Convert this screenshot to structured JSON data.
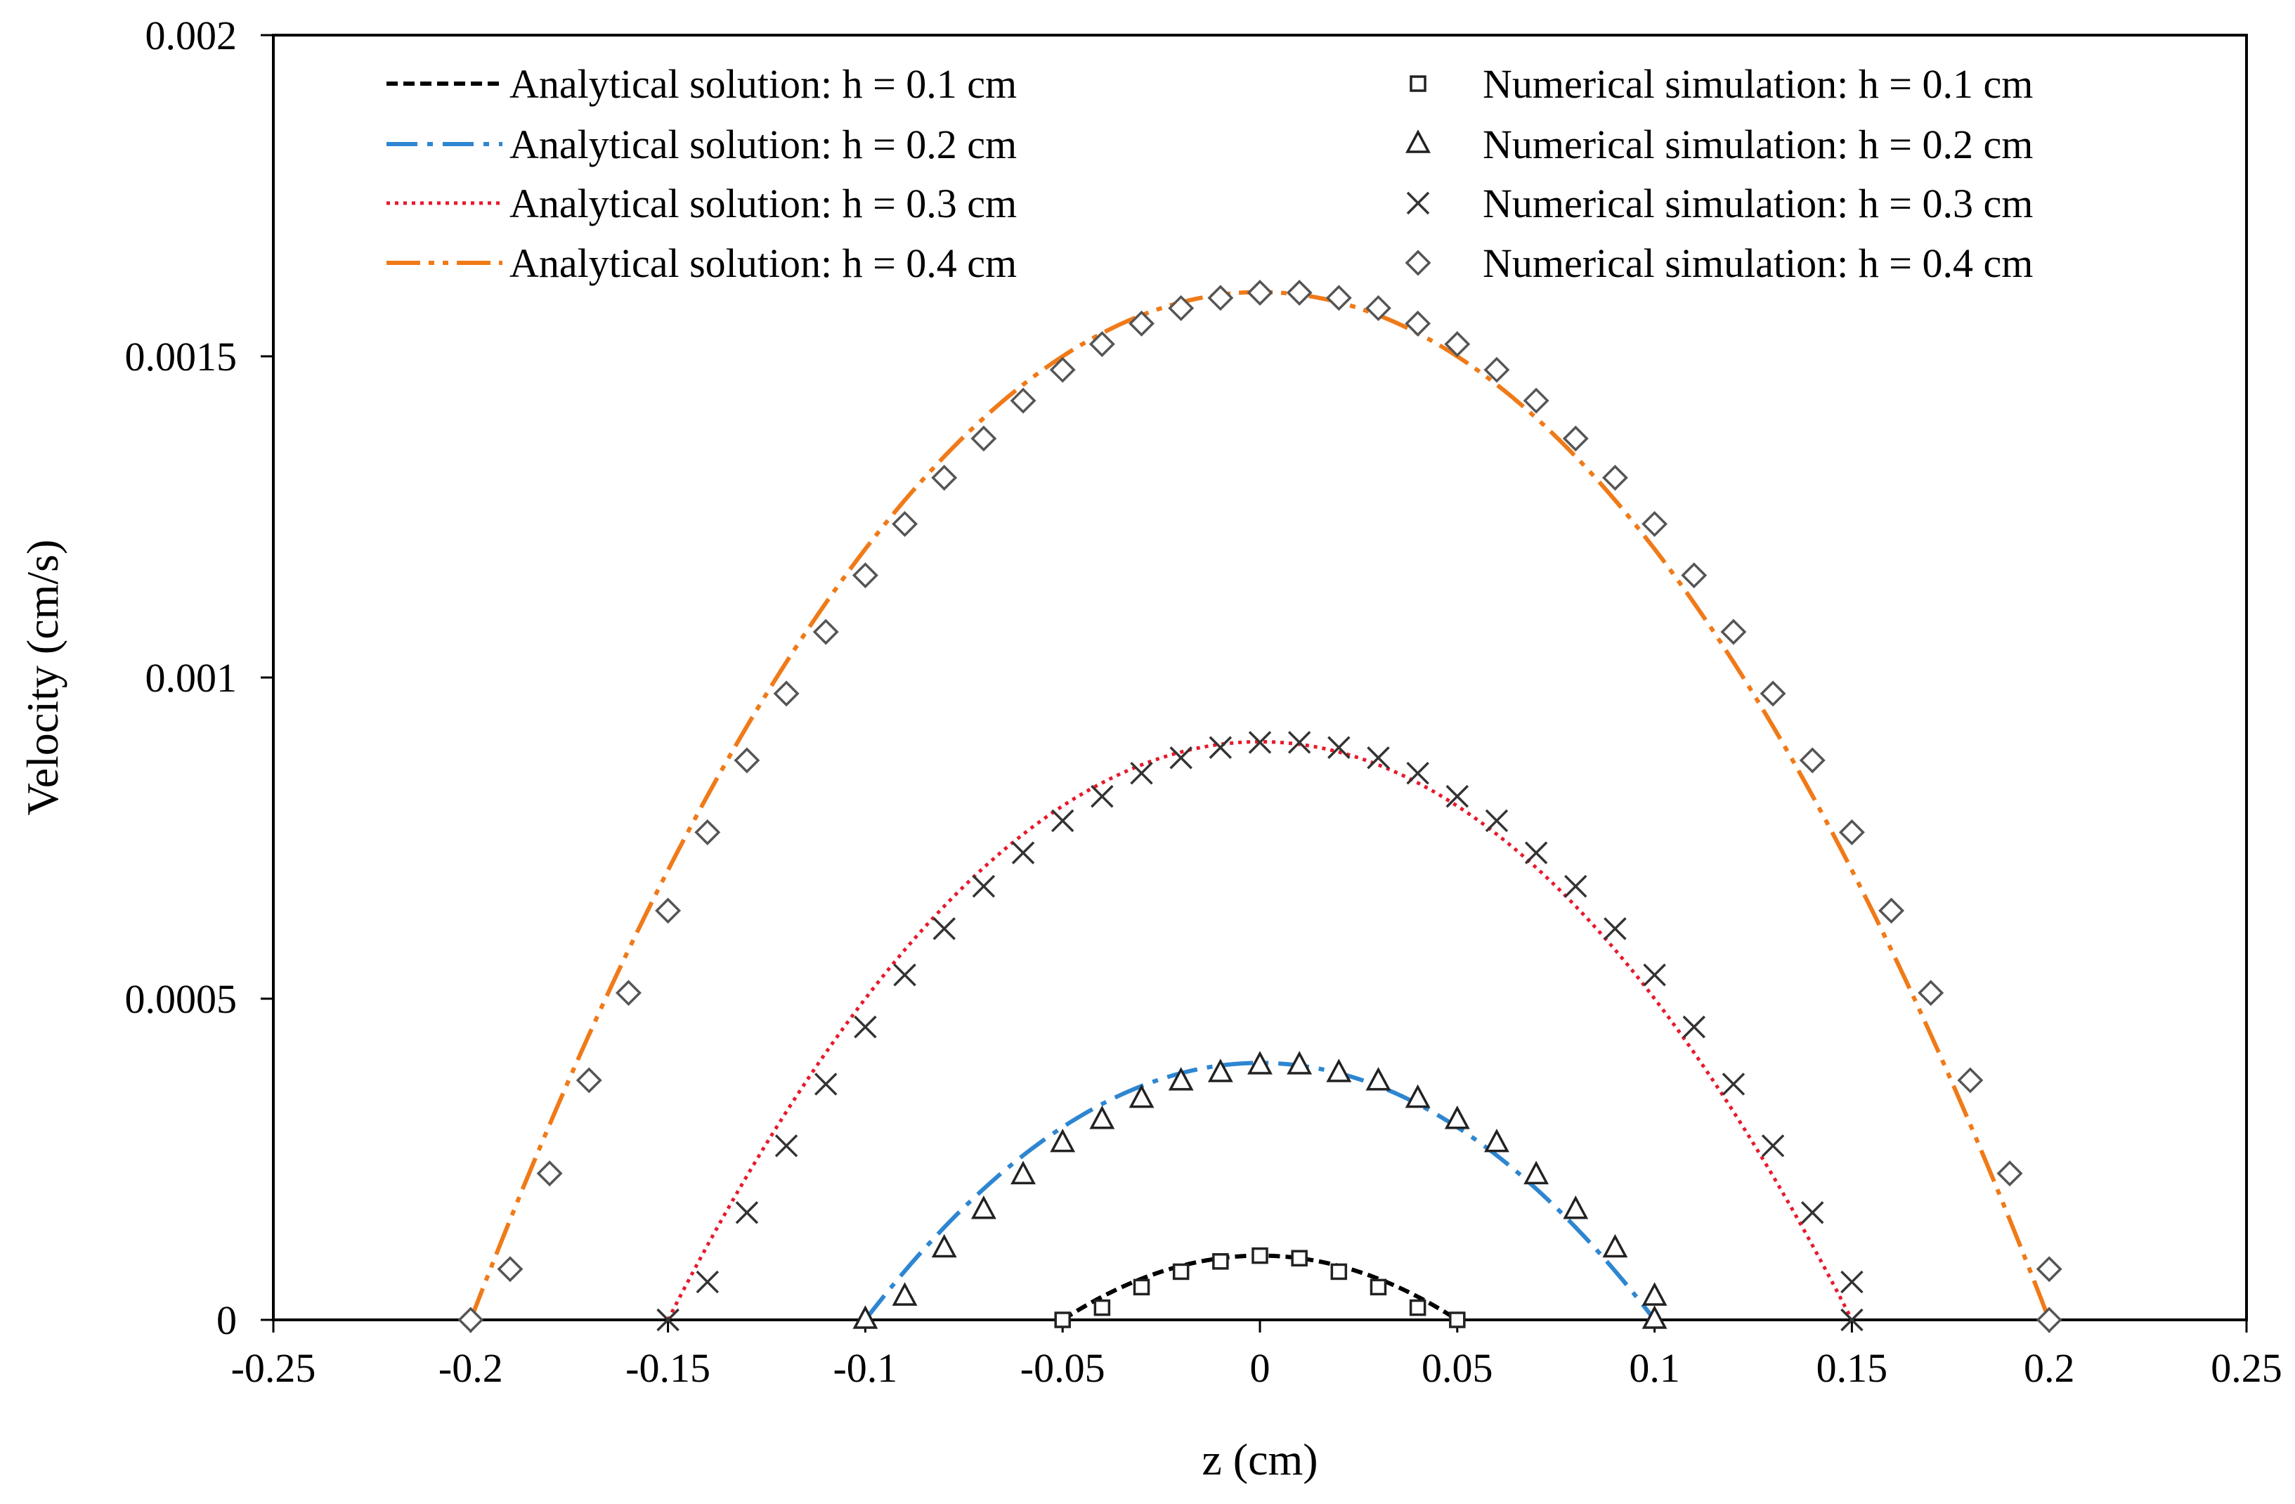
{
  "chart_data": {
    "type": "line",
    "title": "",
    "xlabel": "z (cm)",
    "ylabel": "Velocity (cm/s)",
    "xlim": [
      -0.25,
      0.25
    ],
    "ylim": [
      0,
      0.002
    ],
    "xticks": [
      -0.25,
      -0.2,
      -0.15,
      -0.1,
      -0.05,
      0,
      0.05,
      0.1,
      0.15,
      0.2,
      0.25
    ],
    "xtick_labels": [
      "-0.25",
      "-0.2",
      "-0.15",
      "-0.1",
      "-0.05",
      "0",
      "0.05",
      "0.1",
      "0.15",
      "0.2",
      "0.25"
    ],
    "yticks": [
      0,
      0.0005,
      0.001,
      0.0015,
      0.002
    ],
    "ytick_labels": [
      "0",
      "0.0005",
      "0.001",
      "0.0015",
      "0.002"
    ],
    "grid": false,
    "legend_position": "top",
    "series": [
      {
        "name": "Analytical solution: h = 0.1 cm",
        "kind": "analytical",
        "h": 0.1,
        "peak": 0.0001,
        "color": "#000000",
        "dash": "short-dash"
      },
      {
        "name": "Analytical solution: h = 0.2 cm",
        "kind": "analytical",
        "h": 0.2,
        "peak": 0.0004,
        "color": "#2e86d1",
        "dash": "dash-dot"
      },
      {
        "name": "Analytical solution: h = 0.3 cm",
        "kind": "analytical",
        "h": 0.3,
        "peak": 0.0009,
        "color": "#e8192c",
        "dash": "dotted"
      },
      {
        "name": "Analytical solution: h = 0.4 cm",
        "kind": "analytical",
        "h": 0.4,
        "peak": 0.0016,
        "color": "#f07a18",
        "dash": "long-dash-dot-dot"
      },
      {
        "name": "Numerical simulation: h = 0.1 cm",
        "kind": "numerical",
        "marker": "square",
        "color": "#000000",
        "points": [
          [
            -0.05,
            0
          ],
          [
            -0.04,
            1.9e-05
          ],
          [
            -0.03,
            5.1e-05
          ],
          [
            -0.02,
            7.5e-05
          ],
          [
            -0.01,
            9.1e-05
          ],
          [
            0,
            0.0001
          ],
          [
            0.01,
            9.6e-05
          ],
          [
            0.02,
            7.5e-05
          ],
          [
            0.03,
            5.1e-05
          ],
          [
            0.04,
            1.9e-05
          ],
          [
            0.05,
            0
          ]
        ]
      },
      {
        "name": "Numerical simulation: h = 0.2 cm",
        "kind": "numerical",
        "marker": "triangle",
        "color": "#000000",
        "points": [
          [
            -0.1,
            0
          ],
          [
            -0.09,
            3.6e-05
          ],
          [
            -0.08,
            0.000111
          ],
          [
            -0.07,
            0.000171
          ],
          [
            -0.06,
            0.000225
          ],
          [
            -0.05,
            0.000275
          ],
          [
            -0.04,
            0.000311
          ],
          [
            -0.03,
            0.000344
          ],
          [
            -0.02,
            0.000371
          ],
          [
            -0.01,
            0.000384
          ],
          [
            0,
            0.000396
          ],
          [
            0.01,
            0.000396
          ],
          [
            0.02,
            0.000384
          ],
          [
            0.03,
            0.000371
          ],
          [
            0.04,
            0.000344
          ],
          [
            0.05,
            0.000311
          ],
          [
            0.06,
            0.000275
          ],
          [
            0.07,
            0.000225
          ],
          [
            0.08,
            0.000171
          ],
          [
            0.09,
            0.000111
          ],
          [
            0.1,
            3.6e-05
          ],
          [
            0.1,
            0
          ]
        ]
      },
      {
        "name": "Numerical simulation: h = 0.3 cm",
        "kind": "numerical",
        "marker": "cross",
        "color": "#000000",
        "points": [
          [
            -0.15,
            0
          ],
          [
            -0.14,
            5.9e-05
          ],
          [
            -0.13,
            0.000167
          ],
          [
            -0.12,
            0.000271
          ],
          [
            -0.11,
            0.000367
          ],
          [
            -0.1,
            0.000456
          ],
          [
            -0.09,
            0.000537
          ],
          [
            -0.08,
            0.000609
          ],
          [
            -0.07,
            0.000675
          ],
          [
            -0.06,
            0.000727
          ],
          [
            -0.05,
            0.000777
          ],
          [
            -0.04,
            0.000815
          ],
          [
            -0.03,
            0.000851
          ],
          [
            -0.02,
            0.000875
          ],
          [
            -0.01,
            0.000891
          ],
          [
            0,
            0.000899
          ],
          [
            0.01,
            0.000899
          ],
          [
            0.02,
            0.000891
          ],
          [
            0.03,
            0.000875
          ],
          [
            0.04,
            0.000851
          ],
          [
            0.05,
            0.000815
          ],
          [
            0.06,
            0.000777
          ],
          [
            0.07,
            0.000727
          ],
          [
            0.08,
            0.000675
          ],
          [
            0.09,
            0.000609
          ],
          [
            0.1,
            0.000537
          ],
          [
            0.11,
            0.000456
          ],
          [
            0.12,
            0.000367
          ],
          [
            0.13,
            0.000271
          ],
          [
            0.14,
            0.000167
          ],
          [
            0.15,
            5.9e-05
          ],
          [
            0.15,
            0
          ]
        ]
      },
      {
        "name": "Numerical simulation: h = 0.4 cm",
        "kind": "numerical",
        "marker": "diamond",
        "color": "#000000",
        "points": [
          [
            -0.2,
            0
          ],
          [
            -0.19,
            7.9e-05
          ],
          [
            -0.18,
            0.000228
          ],
          [
            -0.17,
            0.000373
          ],
          [
            -0.16,
            0.000509
          ],
          [
            -0.15,
            0.000637
          ],
          [
            -0.14,
            0.000759
          ],
          [
            -0.13,
            0.000871
          ],
          [
            -0.12,
            0.000975
          ],
          [
            -0.11,
            0.001071
          ],
          [
            -0.1,
            0.001159
          ],
          [
            -0.09,
            0.001239
          ],
          [
            -0.08,
            0.001311
          ],
          [
            -0.07,
            0.001372
          ],
          [
            -0.06,
            0.001431
          ],
          [
            -0.05,
            0.001479
          ],
          [
            -0.04,
            0.001519
          ],
          [
            -0.03,
            0.001551
          ],
          [
            -0.02,
            0.001575
          ],
          [
            -0.01,
            0.001591
          ],
          [
            0,
            0.001599
          ],
          [
            0.01,
            0.001599
          ],
          [
            0.02,
            0.001591
          ],
          [
            0.03,
            0.001575
          ],
          [
            0.04,
            0.001551
          ],
          [
            0.05,
            0.001519
          ],
          [
            0.06,
            0.001479
          ],
          [
            0.07,
            0.001431
          ],
          [
            0.08,
            0.001372
          ],
          [
            0.09,
            0.001311
          ],
          [
            0.1,
            0.001239
          ],
          [
            0.11,
            0.001159
          ],
          [
            0.12,
            0.001071
          ],
          [
            0.13,
            0.000975
          ],
          [
            0.14,
            0.000871
          ],
          [
            0.15,
            0.000759
          ],
          [
            0.16,
            0.000637
          ],
          [
            0.17,
            0.000509
          ],
          [
            0.18,
            0.000373
          ],
          [
            0.19,
            0.000228
          ],
          [
            0.2,
            7.9e-05
          ],
          [
            0.2,
            0
          ]
        ]
      }
    ]
  }
}
